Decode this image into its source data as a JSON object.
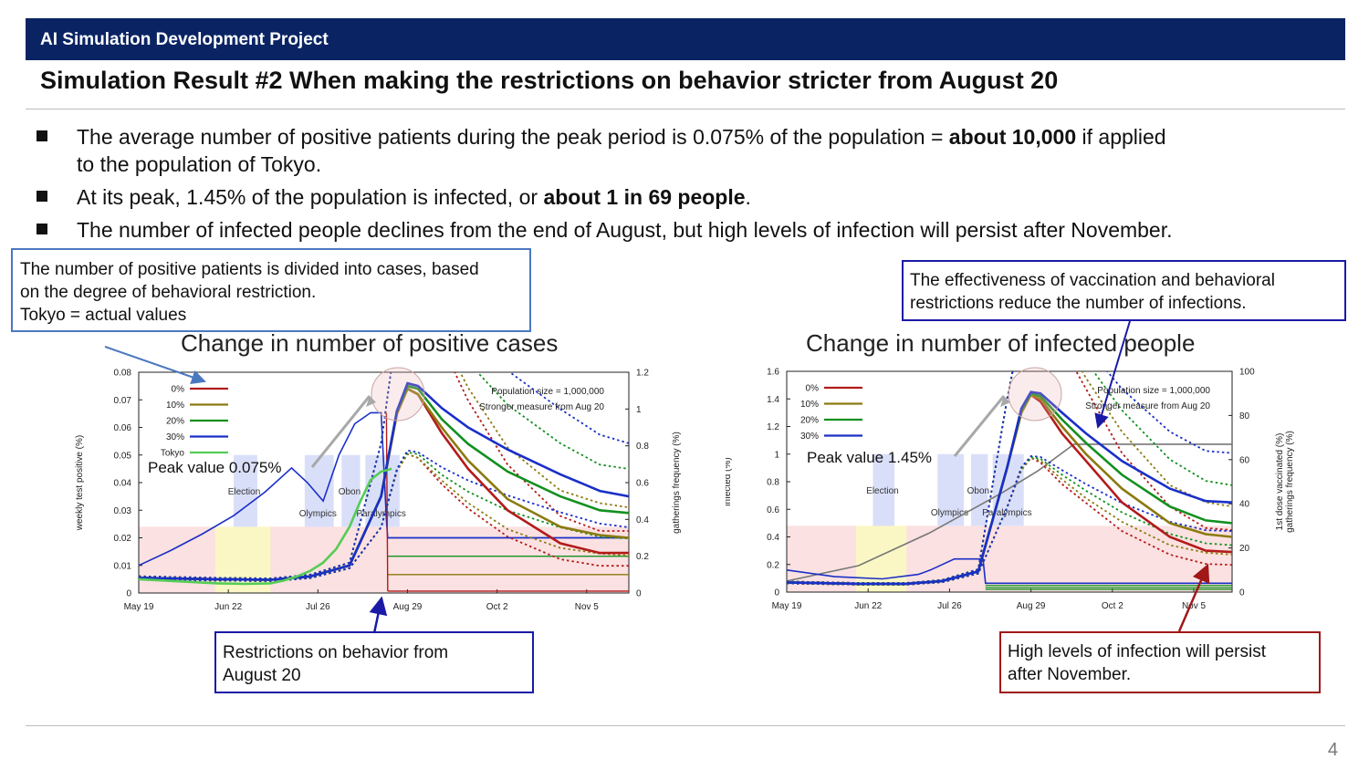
{
  "header": {
    "project": "AI Simulation Development Project"
  },
  "title": "Simulation Result #2 When making the restrictions on behavior stricter from August 20",
  "bullets": [
    {
      "pre": "The average number of positive patients during the peak period is 0.075% of the population = ",
      "bold": "about 10,000",
      "post": " if applied",
      "line2": "to the population of Tokyo."
    },
    {
      "pre": "At its peak, 1.45% of the population is infected, or ",
      "bold": "about 1 in 69 people",
      "post": "."
    },
    {
      "pre": "The number of infected people declines from the end of August, but high levels of infection will persist after November.",
      "bold": "",
      "post": ""
    }
  ],
  "callouts": {
    "left_note": [
      "The number of positive patients is divided into cases, based",
      "on the degree of behavioral restriction.",
      "Tokyo = actual values"
    ],
    "right_note": [
      "The effectiveness of vaccination and behavioral",
      "restrictions reduce the number of infections."
    ],
    "restriction_note": [
      "Restrictions on behavior from",
      "August 20"
    ],
    "persist_note": [
      "High levels of infection will persist",
      "after November."
    ]
  },
  "colors": {
    "header": "#0a2463",
    "callout_blue": "#1a1aa6",
    "callout_light": "#4a78c0",
    "callout_red": "#a01818",
    "case0": "#b31b1b",
    "case10": "#8b7a10",
    "case20": "#12901f",
    "case30": "#1a2fc8",
    "tokyo": "#55cc55"
  },
  "chart_data": [
    {
      "type": "line",
      "title": "Change in number of positive cases",
      "ylabel": "weekly test positive (%)",
      "y2label": "gatherings frequency (%)",
      "ylim": [
        0,
        0.08
      ],
      "y2lim": [
        0,
        1.2
      ],
      "yticks": [
        "0",
        "0.01",
        "0.02",
        "0.03",
        "0.04",
        "0.05",
        "0.06",
        "0.07",
        "0.08"
      ],
      "y2ticks": [
        "0",
        "0.2",
        "0.4",
        "0.6",
        "0.8",
        "1",
        "1.2"
      ],
      "xticks": [
        "May 19",
        "Jun 22",
        "Jul 26",
        "Aug 29",
        "Oct 2",
        "Nov 5"
      ],
      "legend": [
        "0%",
        "10%",
        "20%",
        "30%",
        "Tokyo"
      ],
      "annotations": {
        "population": "Population size = 1,000,000",
        "measure": "Stronger measure from Aug 20",
        "peak": "Peak value 0.075%"
      },
      "events": [
        "Election",
        "Obon",
        "Olympics",
        "Paralympics"
      ],
      "series": [
        {
          "name": "0%",
          "x": [
            0,
            30,
            50,
            65,
            80,
            92,
            98,
            102,
            106,
            115,
            125,
            140,
            160,
            175,
            186
          ],
          "y": [
            0.0055,
            0.005,
            0.0048,
            0.006,
            0.01,
            0.035,
            0.065,
            0.074,
            0.072,
            0.058,
            0.045,
            0.03,
            0.018,
            0.0145,
            0.0145
          ]
        },
        {
          "name": "10%",
          "x": [
            0,
            30,
            50,
            65,
            80,
            92,
            98,
            102,
            106,
            115,
            125,
            140,
            160,
            175,
            186
          ],
          "y": [
            0.0055,
            0.005,
            0.0048,
            0.006,
            0.01,
            0.035,
            0.065,
            0.074,
            0.072,
            0.06,
            0.048,
            0.034,
            0.024,
            0.021,
            0.02
          ]
        },
        {
          "name": "20%",
          "x": [
            0,
            30,
            50,
            65,
            80,
            92,
            98,
            102,
            106,
            115,
            125,
            140,
            160,
            175,
            186
          ],
          "y": [
            0.0055,
            0.005,
            0.0048,
            0.006,
            0.01,
            0.035,
            0.066,
            0.075,
            0.074,
            0.063,
            0.054,
            0.044,
            0.035,
            0.03,
            0.029
          ]
        },
        {
          "name": "30%",
          "x": [
            0,
            30,
            50,
            65,
            80,
            92,
            98,
            102,
            106,
            115,
            125,
            140,
            160,
            175,
            186
          ],
          "y": [
            0.0055,
            0.005,
            0.0048,
            0.006,
            0.01,
            0.035,
            0.066,
            0.076,
            0.075,
            0.067,
            0.06,
            0.052,
            0.043,
            0.037,
            0.035
          ]
        },
        {
          "name": "Tokyo",
          "x": [
            0,
            10,
            20,
            30,
            40,
            50,
            55,
            60,
            65,
            70,
            75,
            80,
            84,
            88,
            92,
            96
          ],
          "y": [
            0.005,
            0.0045,
            0.004,
            0.0035,
            0.0033,
            0.0035,
            0.0045,
            0.006,
            0.008,
            0.011,
            0.016,
            0.024,
            0.033,
            0.041,
            0.044,
            0.045
          ]
        }
      ],
      "gatherings_measured": {
        "x": [
          0,
          12,
          24,
          36,
          48,
          58,
          64,
          70,
          76,
          82,
          88,
          92,
          94,
          94.5,
          186
        ],
        "y": [
          0.15,
          0.23,
          0.32,
          0.42,
          0.55,
          0.68,
          0.6,
          0.5,
          0.75,
          0.92,
          0.98,
          0.98,
          0.4,
          0.3,
          0.3
        ]
      },
      "gatherings_after": [
        0.3,
        0.2,
        0.1,
        0.01
      ]
    },
    {
      "type": "line",
      "title": "Change in number of infected people",
      "ylabel": "infected (%)",
      "y2label": "1st dose vaccinated (%)\ngatherings frequency (%)",
      "ylim": [
        0,
        1.6
      ],
      "y2lim": [
        0,
        100
      ],
      "yticks": [
        "0",
        "0.2",
        "0.4",
        "0.6",
        "0.8",
        "1",
        "1.2",
        "1.4",
        "1.6"
      ],
      "y2ticks": [
        "0",
        "20",
        "40",
        "60",
        "80",
        "100"
      ],
      "xticks": [
        "May 19",
        "Jun 22",
        "Jul 26",
        "Aug 29",
        "Oct 2",
        "Nov 5"
      ],
      "legend": [
        "0%",
        "10%",
        "20%",
        "30%"
      ],
      "annotations": {
        "population": "Population size = 1,000,000",
        "measure": "Stronger measure from Aug 20",
        "peak": "Peak value 1.45%"
      },
      "events": [
        "Election",
        "Obon",
        "Olympics",
        "Paralympics"
      ],
      "series": [
        {
          "name": "0%",
          "x": [
            0,
            30,
            50,
            65,
            80,
            92,
            98,
            102,
            106,
            115,
            125,
            140,
            160,
            175,
            186
          ],
          "y": [
            0.07,
            0.06,
            0.06,
            0.08,
            0.15,
            0.9,
            1.3,
            1.43,
            1.38,
            1.15,
            0.95,
            0.65,
            0.4,
            0.3,
            0.29
          ]
        },
        {
          "name": "10%",
          "x": [
            0,
            30,
            50,
            65,
            80,
            92,
            98,
            102,
            106,
            115,
            125,
            140,
            160,
            175,
            186
          ],
          "y": [
            0.07,
            0.06,
            0.06,
            0.08,
            0.15,
            0.9,
            1.3,
            1.43,
            1.4,
            1.2,
            1.0,
            0.75,
            0.5,
            0.42,
            0.4
          ]
        },
        {
          "name": "20%",
          "x": [
            0,
            30,
            50,
            65,
            80,
            92,
            98,
            102,
            106,
            115,
            125,
            140,
            160,
            175,
            186
          ],
          "y": [
            0.07,
            0.06,
            0.06,
            0.08,
            0.15,
            0.9,
            1.32,
            1.44,
            1.42,
            1.25,
            1.08,
            0.85,
            0.62,
            0.52,
            0.5
          ]
        },
        {
          "name": "30%",
          "x": [
            0,
            30,
            50,
            65,
            80,
            92,
            98,
            102,
            106,
            115,
            125,
            140,
            160,
            175,
            186
          ],
          "y": [
            0.07,
            0.06,
            0.06,
            0.08,
            0.15,
            0.9,
            1.33,
            1.45,
            1.44,
            1.3,
            1.15,
            0.95,
            0.75,
            0.66,
            0.65
          ]
        }
      ],
      "vaccinated": {
        "x": [
          0,
          30,
          60,
          90,
          105,
          120,
          150,
          186
        ],
        "y": [
          5,
          12,
          27,
          45,
          55,
          67,
          67,
          67
        ]
      },
      "gatherings": {
        "x": [
          0,
          20,
          40,
          55,
          60,
          70,
          80,
          82,
          83,
          186
        ],
        "y": [
          10,
          7,
          6,
          8,
          10,
          15,
          15,
          15,
          4,
          4
        ]
      }
    }
  ],
  "page_number": "4"
}
